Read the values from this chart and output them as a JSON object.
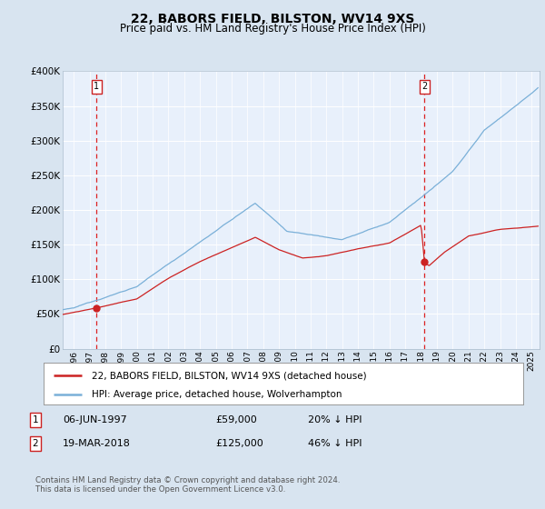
{
  "title": "22, BABORS FIELD, BILSTON, WV14 9XS",
  "subtitle": "Price paid vs. HM Land Registry's House Price Index (HPI)",
  "bg_color": "#d8e4f0",
  "plot_bg_color": "#e8f0fb",
  "hpi_color": "#7ab0d8",
  "price_color": "#cc2222",
  "sale1_year": 1997.44,
  "sale1_price": 59000,
  "sale2_year": 2018.21,
  "sale2_price": 125000,
  "legend_line1": "22, BABORS FIELD, BILSTON, WV14 9XS (detached house)",
  "legend_line2": "HPI: Average price, detached house, Wolverhampton",
  "note1_date": "06-JUN-1997",
  "note1_price": "£59,000",
  "note1_hpi": "20% ↓ HPI",
  "note2_date": "19-MAR-2018",
  "note2_price": "£125,000",
  "note2_hpi": "46% ↓ HPI",
  "footer": "Contains HM Land Registry data © Crown copyright and database right 2024.\nThis data is licensed under the Open Government Licence v3.0.",
  "ylim": [
    0,
    400000
  ],
  "xlim_start": 1995.3,
  "xlim_end": 2025.5,
  "yticks": [
    0,
    50000,
    100000,
    150000,
    200000,
    250000,
    300000,
    350000,
    400000
  ],
  "ytick_labels": [
    "£0",
    "£50K",
    "£100K",
    "£150K",
    "£200K",
    "£250K",
    "£300K",
    "£350K",
    "£400K"
  ]
}
